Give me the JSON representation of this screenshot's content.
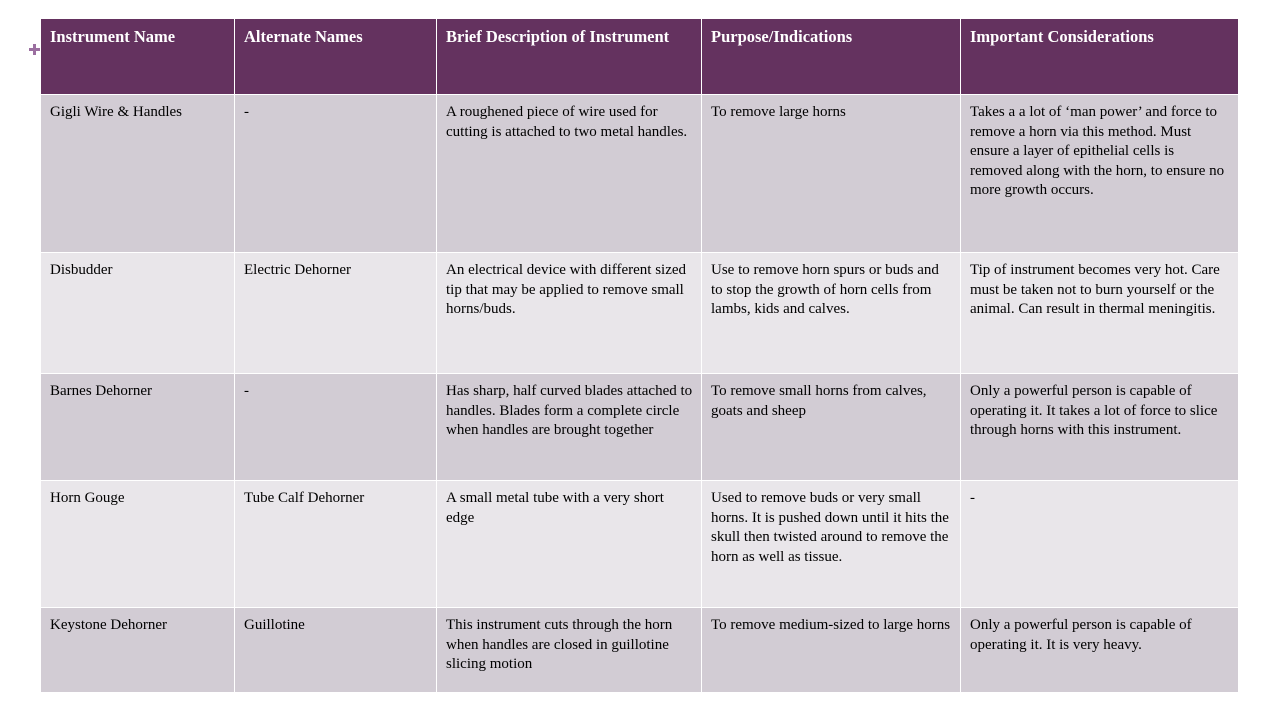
{
  "headers": [
    "Instrument Name",
    "Alternate Names",
    "Brief Description of Instrument",
    "Purpose/Indications",
    "Important Considerations"
  ],
  "rows": [
    {
      "name": "Gigli Wire & Handles",
      "alternate": "-",
      "description": "A roughened piece of wire used for cutting is attached to two metal handles.",
      "purpose": "To remove large horns",
      "considerations": "Takes a a lot of ‘man power’ and force to remove a horn via this method.  Must ensure a layer of epithelial cells is removed along with the horn, to ensure no more growth occurs."
    },
    {
      "name": "Disbudder",
      "alternate": "Electric Dehorner",
      "description": "An electrical device with different sized tip that may be applied to remove small horns/buds.",
      "purpose": "Use to remove horn spurs or buds and to stop the growth of horn cells from lambs, kids and calves.",
      "considerations": "Tip of instrument becomes very hot. Care must be taken not to burn yourself or the animal. Can result in thermal meningitis."
    },
    {
      "name": "Barnes Dehorner",
      "alternate": "-",
      "description": "Has sharp, half curved blades attached to handles. Blades form a complete circle when handles are brought together",
      "purpose": "To remove small horns from calves, goats and sheep",
      "considerations": "Only a powerful person is capable of operating it. It takes a lot of force to slice through horns with this instrument."
    },
    {
      "name": "Horn Gouge",
      "alternate": "Tube Calf Dehorner",
      "description": "A small metal tube with a very short edge",
      "purpose": "Used to remove buds or very small horns. It is pushed down until it hits the skull then twisted around to remove the horn as well as tissue.",
      "considerations": "-"
    },
    {
      "name": "Keystone Dehorner",
      "alternate": "Guillotine",
      "description": "This instrument cuts through the horn when handles are closed in guillotine slicing motion",
      "purpose": "To remove medium-sized to large horns",
      "considerations": "Only a powerful person is capable of operating it. It is very heavy."
    }
  ]
}
